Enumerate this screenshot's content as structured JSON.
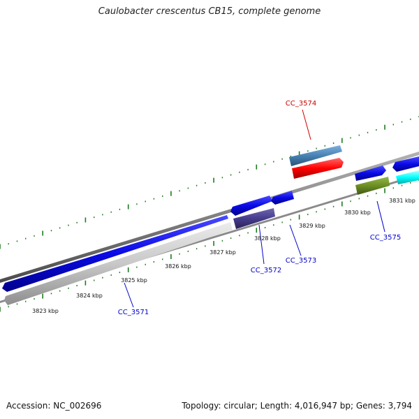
{
  "title": "Caulobacter crescentus CB15, complete genome",
  "footer": {
    "accession": "Accession: NC_002696",
    "summary": "Topology: circular; Length: 4,016,947 bp; Genes: 3,794"
  },
  "kbp_labels": [
    "3823 kbp",
    "3824 kbp",
    "3825 kbp",
    "3826 kbp",
    "3827 kbp",
    "3828 kbp",
    "3829 kbp",
    "3830 kbp",
    "3831 kbp"
  ],
  "gene_labels": {
    "cc_3571": "CC_3571",
    "cc_3572": "CC_3572",
    "cc_3573": "CC_3573",
    "cc_3574": "CC_3574",
    "cc_3575": "CC_3575"
  },
  "colors": {
    "backbone": "#808080",
    "ticks": "#1e7a1e",
    "gene_blue": "#0a0ae6",
    "gene_light_gray": "#c8c8c8",
    "gene_dark_purple": "#463c8c",
    "gene_steel_blue": "#4682b4",
    "gene_red": "#ff0000",
    "gene_olive": "#6b8e23",
    "gene_cyan": "#00ffff",
    "label_blue": "#0000cc",
    "label_red": "#cc0000"
  }
}
